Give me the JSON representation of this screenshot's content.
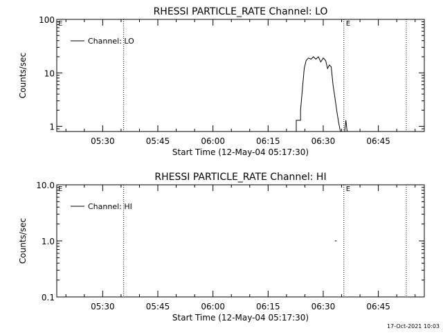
{
  "footer_timestamp": "17-Oct-2021 10:03",
  "chart_data": [
    {
      "type": "line",
      "title": "RHESSI PARTICLE_RATE Channel: LO",
      "xlabel": "Start Time (12-May-04 05:17:30)",
      "ylabel": "Counts/sec",
      "yscale": "log",
      "xlim": [
        "05:17:30",
        "06:57:30"
      ],
      "ylim": [
        0.8,
        100
      ],
      "x_ticks": [
        "05:30",
        "05:45",
        "06:00",
        "06:15",
        "06:30",
        "06:45"
      ],
      "y_ticks": [
        "1",
        "10",
        "100"
      ],
      "legend": {
        "label": "Channel: LO",
        "position": "top-left"
      },
      "markers": [
        {
          "time": "05:35:42",
          "label": ""
        },
        {
          "time": "06:35:36",
          "label": "E"
        },
        {
          "time": "06:52:36",
          "label": ""
        }
      ],
      "corner_label": "E",
      "series": [
        {
          "name": "Channel: LO",
          "points": [
            [
              "06:22:40",
              0.8
            ],
            [
              "06:22:40",
              1.3
            ],
            [
              "06:23:50",
              1.3
            ],
            [
              "06:23:50",
              2.0
            ],
            [
              "06:24:20",
              5.0
            ],
            [
              "06:24:50",
              12.0
            ],
            [
              "06:25:20",
              17.0
            ],
            [
              "06:26:00",
              19.0
            ],
            [
              "06:26:40",
              18.0
            ],
            [
              "06:27:20",
              20.0
            ],
            [
              "06:28:00",
              18.0
            ],
            [
              "06:28:40",
              20.0
            ],
            [
              "06:29:20",
              16.0
            ],
            [
              "06:30:00",
              19.0
            ],
            [
              "06:30:40",
              17.0
            ],
            [
              "06:31:10",
              12.0
            ],
            [
              "06:31:40",
              14.0
            ],
            [
              "06:32:10",
              13.0
            ],
            [
              "06:32:40",
              6.0
            ],
            [
              "06:33:10",
              3.5
            ],
            [
              "06:33:40",
              2.0
            ],
            [
              "06:34:10",
              1.2
            ],
            [
              "06:34:40",
              0.8
            ]
          ]
        },
        {
          "name": "",
          "points": [
            [
              "06:35:50",
              0.8
            ],
            [
              "06:36:10",
              1.3
            ],
            [
              "06:36:30",
              0.8
            ]
          ]
        }
      ]
    },
    {
      "type": "line",
      "title": "RHESSI PARTICLE_RATE Channel: HI",
      "xlabel": "Start Time (12-May-04 05:17:30)",
      "ylabel": "Counts/sec",
      "yscale": "log",
      "xlim": [
        "05:17:30",
        "06:57:30"
      ],
      "ylim": [
        0.1,
        10
      ],
      "x_ticks": [
        "05:30",
        "05:45",
        "06:00",
        "06:15",
        "06:30",
        "06:45"
      ],
      "y_ticks": [
        "0.1",
        "1.0",
        "10.0"
      ],
      "legend": {
        "label": "Channel: HI",
        "position": "top-left"
      },
      "markers": [
        {
          "time": "05:35:42",
          "label": ""
        },
        {
          "time": "06:35:36",
          "label": "E"
        },
        {
          "time": "06:52:36",
          "label": ""
        }
      ],
      "corner_label": "E",
      "series": [
        {
          "name": "Channel: HI",
          "points": [
            [
              "06:33:10",
              1.0
            ],
            [
              "06:33:40",
              1.0
            ]
          ]
        }
      ]
    }
  ]
}
